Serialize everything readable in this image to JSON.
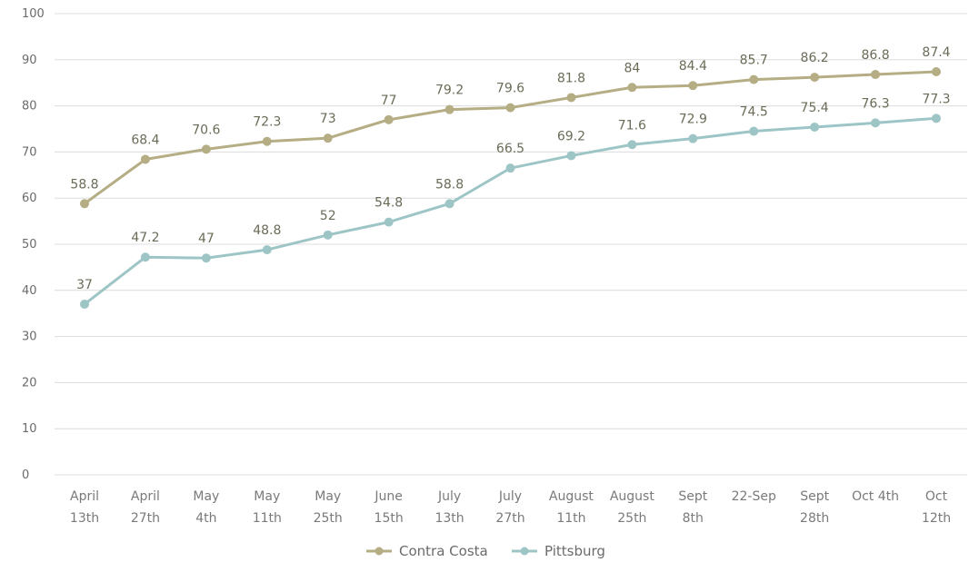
{
  "chart_data": {
    "type": "line",
    "title": "",
    "xlabel": "",
    "ylabel": "",
    "ylim": [
      0,
      100
    ],
    "yticks": [
      0,
      10,
      20,
      30,
      40,
      50,
      60,
      70,
      80,
      90,
      100
    ],
    "grid": true,
    "legend_position": "bottom",
    "categories": [
      [
        "April",
        "13th"
      ],
      [
        "April",
        "27th"
      ],
      [
        "May",
        "4th"
      ],
      [
        "May",
        "11th"
      ],
      [
        "May",
        "25th"
      ],
      [
        "June",
        "15th"
      ],
      [
        "July",
        "13th"
      ],
      [
        "July",
        "27th"
      ],
      [
        "August",
        "11th"
      ],
      [
        "August",
        "25th"
      ],
      [
        "Sept",
        "8th"
      ],
      [
        "22-Sep"
      ],
      [
        "Sept",
        "28th"
      ],
      [
        "Oct 4th"
      ],
      [
        "Oct",
        "12th"
      ]
    ],
    "series": [
      {
        "name": "Contra Costa",
        "color": "#b5ad84",
        "values": [
          58.8,
          68.4,
          70.6,
          72.3,
          73,
          77,
          79.2,
          79.6,
          81.8,
          84,
          84.4,
          85.7,
          86.2,
          86.8,
          87.4
        ]
      },
      {
        "name": "Pittsburg",
        "color": "#9ec5c6",
        "values": [
          37,
          47.2,
          47,
          48.8,
          52,
          54.8,
          58.8,
          66.5,
          69.2,
          71.6,
          72.9,
          74.5,
          75.4,
          76.3,
          77.3
        ]
      }
    ],
    "label_color": "#6b6b58",
    "gridline_color": "#dcdcdc"
  }
}
